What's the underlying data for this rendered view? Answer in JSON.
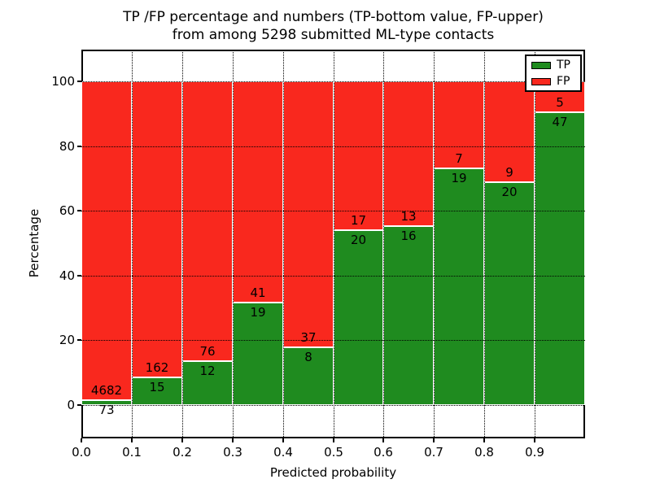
{
  "figure": {
    "title_line1": "TP /FP percentage and numbers (TP-bottom value, FP-upper)",
    "title_line2": "from among 5298 submitted ML-type contacts"
  },
  "chart_data": {
    "type": "bar",
    "stacked": true,
    "normalized_to": 100,
    "title": "TP /FP percentage and numbers (TP-bottom value, FP-upper)\nfrom among 5298 submitted ML-type contacts",
    "xlabel": "Predicted probability",
    "ylabel": "Percentage",
    "categories": [
      "0.0-0.1",
      "0.1-0.2",
      "0.2-0.3",
      "0.3-0.4",
      "0.4-0.5",
      "0.5-0.6",
      "0.6-0.7",
      "0.7-0.8",
      "0.8-0.9",
      "0.9-1.0"
    ],
    "series": [
      {
        "name": "TP",
        "color": "#1f8b1f",
        "values": [
          73,
          15,
          12,
          19,
          8,
          20,
          16,
          19,
          20,
          47
        ]
      },
      {
        "name": "FP",
        "color": "#f9281e",
        "values": [
          4682,
          162,
          76,
          41,
          37,
          17,
          13,
          7,
          9,
          5
        ]
      }
    ],
    "total_contacts": 5298,
    "x_tick_labels": [
      "0.0",
      "0.1",
      "0.2",
      "0.3",
      "0.4",
      "0.5",
      "0.6",
      "0.7",
      "0.8",
      "0.9"
    ],
    "y_tick_labels": [
      "0",
      "20",
      "40",
      "60",
      "80",
      "100"
    ],
    "y_tick_values": [
      0,
      20,
      40,
      60,
      80,
      100
    ],
    "xlim": [
      0.0,
      1.0
    ],
    "ylim": [
      -10.3,
      109.8
    ],
    "grid": "dotted",
    "legend": {
      "position": "upper right",
      "entries": [
        {
          "label": "TP",
          "color": "#1f8b1f"
        },
        {
          "label": "FP",
          "color": "#f9281e"
        }
      ]
    }
  }
}
